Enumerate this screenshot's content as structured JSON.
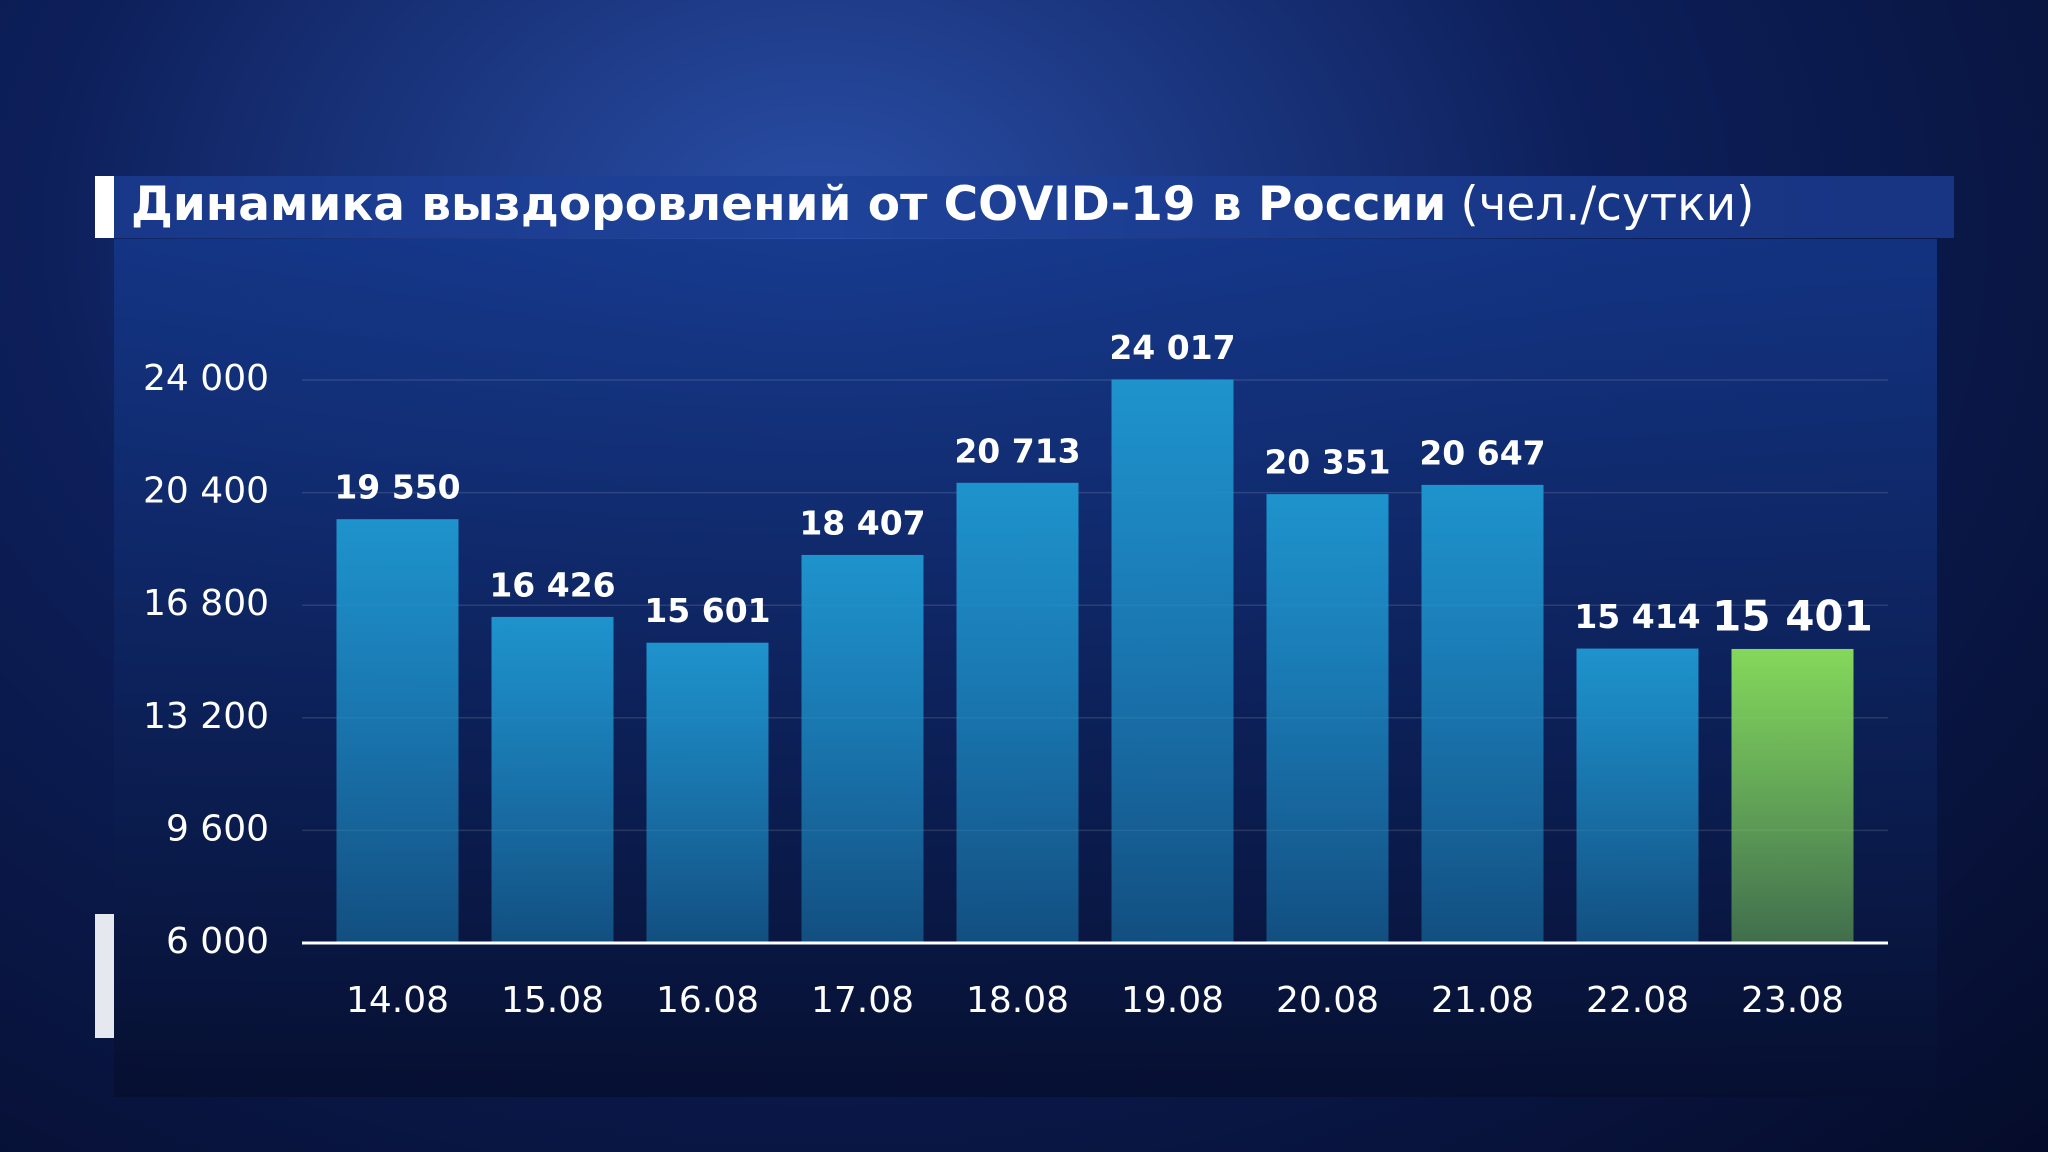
{
  "chart_data": {
    "type": "bar",
    "title": "Динамика выздоровлений от COVID-19 в России",
    "subtitle": "(чел./сутки)",
    "categories": [
      "14.08",
      "15.08",
      "16.08",
      "17.08",
      "18.08",
      "19.08",
      "20.08",
      "21.08",
      "22.08",
      "23.08"
    ],
    "values": [
      19550,
      16426,
      15601,
      18407,
      20713,
      24017,
      20351,
      20647,
      15414,
      15401
    ],
    "value_labels": [
      "19 550",
      "16 426",
      "15 601",
      "18 407",
      "20 713",
      "24 017",
      "20 351",
      "20 647",
      "15 414",
      "15 401"
    ],
    "colors": [
      "#1e93cc",
      "#1e93cc",
      "#1e93cc",
      "#1e93cc",
      "#1e93cc",
      "#1e93cc",
      "#1e93cc",
      "#1e93cc",
      "#1e93cc",
      "#84d85a"
    ],
    "ylim": [
      6000,
      24000
    ],
    "yticks": [
      {
        "value": 6000,
        "label": "6 000"
      },
      {
        "value": 9600,
        "label": "9 600"
      },
      {
        "value": 13200,
        "label": "13 200"
      },
      {
        "value": 16800,
        "label": "16 800"
      },
      {
        "value": 20400,
        "label": "20 400"
      },
      {
        "value": 24000,
        "label": "24 000"
      }
    ],
    "grid": true
  }
}
